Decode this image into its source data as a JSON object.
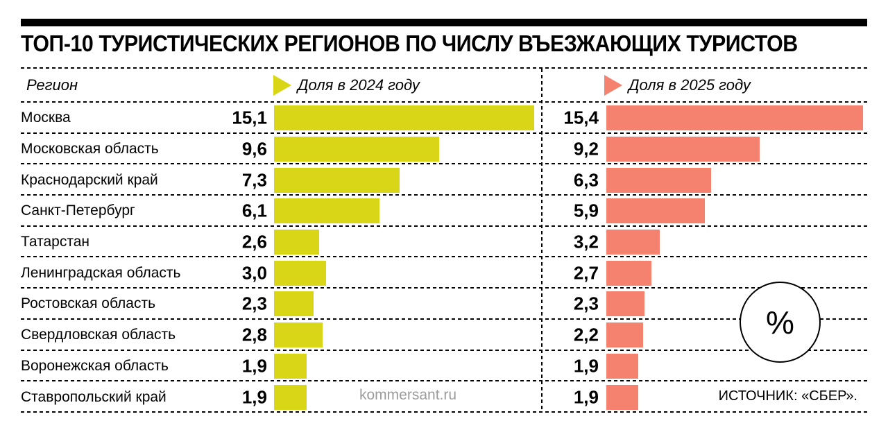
{
  "title": "ТОП-10 ТУРИСТИЧЕСКИХ РЕГИОНОВ ПО ЧИСЛУ ВЪЕЗЖАЮЩИХ ТУРИСТОВ",
  "header": {
    "region_label": "Регион"
  },
  "footer": {
    "watermark": "kommersant.ru",
    "source": "ИСТОЧНИК: «СБЕР»."
  },
  "percent_badge": "%",
  "chart_data": {
    "type": "bar",
    "title": "ТОП-10 ТУРИСТИЧЕСКИХ РЕГИОНОВ ПО ЧИСЛУ ВЪЕЗЖАЮЩИХ ТУРИСТОВ",
    "unit": "%",
    "orientation": "horizontal",
    "categories": [
      "Москва",
      "Московская область",
      "Краснодарский край",
      "Санкт-Петербург",
      "Татарстан",
      "Ленинградская область",
      "Ростовская область",
      "Свердловская область",
      "Воронежская область",
      "Ставропольский край"
    ],
    "series": [
      {
        "name": "Доля в 2024 году",
        "color": "#d9d517",
        "values": [
          15.1,
          9.6,
          7.3,
          6.1,
          2.6,
          3.0,
          2.3,
          2.8,
          1.9,
          1.9
        ],
        "labels": [
          "15,1",
          "9,6",
          "7,3",
          "6,1",
          "2,6",
          "3,0",
          "2,3",
          "2,8",
          "1,9",
          "1,9"
        ]
      },
      {
        "name": "Доля в 2025 году",
        "color": "#f5816f",
        "values": [
          15.4,
          9.2,
          6.3,
          5.9,
          3.2,
          2.7,
          2.3,
          2.2,
          1.9,
          1.9
        ],
        "labels": [
          "15,4",
          "9,2",
          "6,3",
          "5,9",
          "3,2",
          "2,7",
          "2,3",
          "2,2",
          "1,9",
          "1,9"
        ]
      }
    ],
    "xlim": [
      0,
      15.4
    ],
    "grid": "dashed-row-separators",
    "legend_position": "top"
  }
}
